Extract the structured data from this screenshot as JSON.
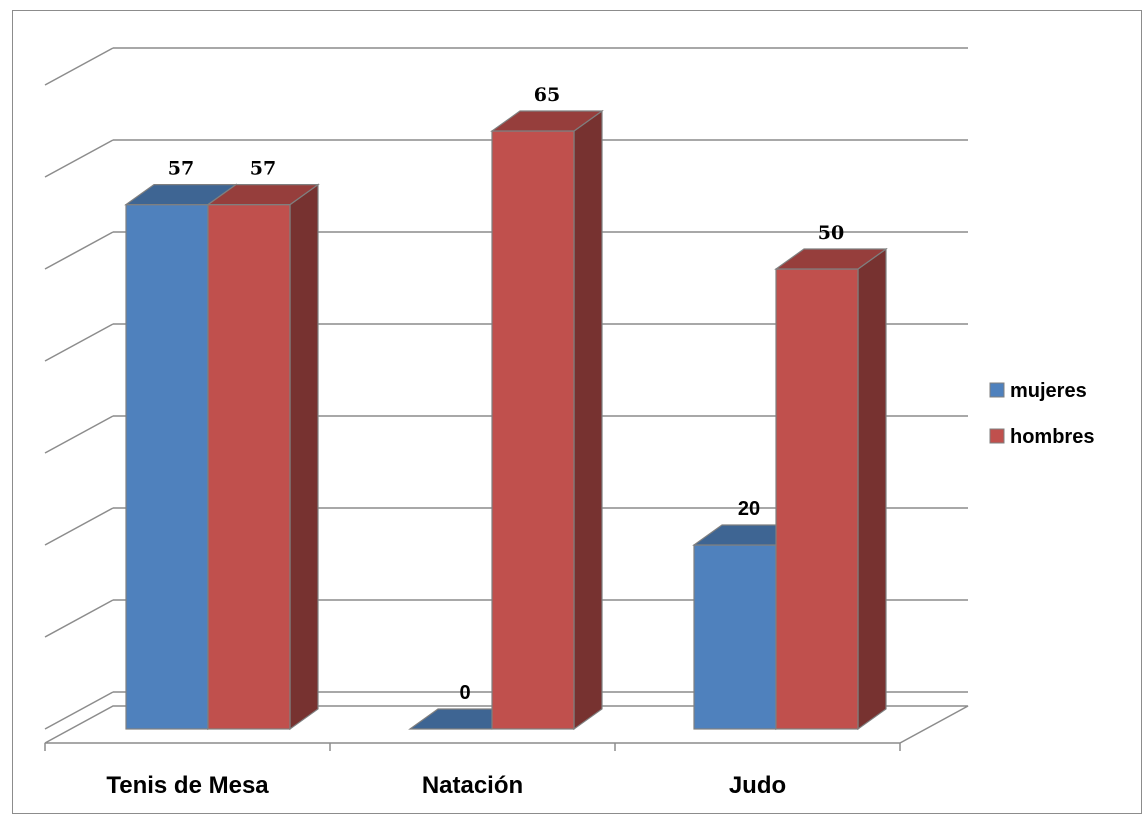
{
  "chart_data": {
    "type": "bar",
    "categories": [
      "Tenis de Mesa",
      "Natación",
      "Judo"
    ],
    "series": [
      {
        "name": "mujeres",
        "values": [
          57,
          0,
          20
        ],
        "color": "#4f81bd"
      },
      {
        "name": "hombres",
        "values": [
          57,
          65,
          50
        ],
        "color": "#c0504d"
      }
    ],
    "ylim": [
      0,
      70
    ],
    "grid": true,
    "legend_position": "right",
    "three_d": true
  }
}
